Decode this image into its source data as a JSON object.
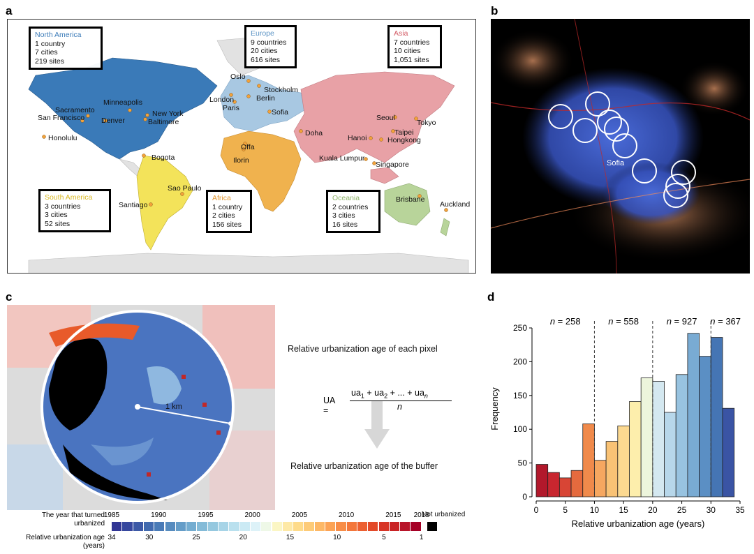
{
  "panels": {
    "a": "a",
    "b": "b",
    "c": "c",
    "d": "d"
  },
  "map": {
    "regions": [
      {
        "name": "North America",
        "countries": "1 country",
        "cities": "7 cities",
        "sites": "219 sites",
        "color": "#3a7ab8"
      },
      {
        "name": "Europe",
        "countries": "9 countries",
        "cities": "20 cities",
        "sites": "616 sites",
        "color": "#a8c8e2"
      },
      {
        "name": "Asia",
        "countries": "7 countries",
        "cities": "10 cities",
        "sites": "1,051 sites",
        "color": "#e8a1a6"
      },
      {
        "name": "South America",
        "countries": "3 countries",
        "cities": "3 cities",
        "sites": "52 sites",
        "color": "#f3e35a"
      },
      {
        "name": "Africa",
        "countries": "1 country",
        "cities": "2 cities",
        "sites": "156 sites",
        "color": "#f0b24e"
      },
      {
        "name": "Oceania",
        "countries": "2 countries",
        "cities": "3 cities",
        "sites": "16 sites",
        "color": "#b8d49a"
      }
    ],
    "cities": [
      "Sacramento",
      "San Francisco",
      "Minneapolis",
      "Denver",
      "New York",
      "Baltimore",
      "Honolulu",
      "Bogota",
      "Sao Paulo",
      "Santiago",
      "Oslo",
      "Stockholm",
      "London",
      "Berlin",
      "Paris",
      "Sofia",
      "Offa",
      "Ilorin",
      "Doha",
      "Seoul",
      "Tokyo",
      "Taipei",
      "Hanoi",
      "Hongkong",
      "Kuala Lumpur",
      "Singapore",
      "Brisbane",
      "Auckland"
    ]
  },
  "satellite": {
    "label": "Sofia"
  },
  "panel_c": {
    "scale_label": "1 km",
    "pixel_text": "Relative urbanization age of each pixel",
    "buffer_text": "Relative urbanization age of the buffer",
    "formula_lhs": "UA =",
    "formula_num": "ua",
    "formula_mid": " + ua",
    "formula_dots": " + ... + ua",
    "sub1": "1",
    "sub2": "2",
    "subn": "n",
    "formula_den": "n",
    "legend": {
      "year_label": "The year that turned urbanized",
      "age_label": "Relative urbanization age (years)",
      "years": [
        "1985",
        "1990",
        "1995",
        "2000",
        "2005",
        "2010",
        "2015",
        "2018"
      ],
      "ages": [
        "34",
        "30",
        "25",
        "20",
        "15",
        "10",
        "5",
        "1"
      ],
      "not_urbanized": "Not urbanized"
    }
  },
  "chart_data": {
    "type": "bar",
    "xlabel": "Relative urbanization age (years)",
    "ylabel": "Frequency",
    "xlim": [
      0,
      35
    ],
    "ylim": [
      0,
      250
    ],
    "xticks": [
      0,
      5,
      10,
      15,
      20,
      25,
      30,
      35
    ],
    "yticks": [
      0,
      50,
      100,
      150,
      200,
      250
    ],
    "bin_width": 2,
    "bins": [
      {
        "x": 0,
        "value": 48,
        "color": "#b2182b"
      },
      {
        "x": 2,
        "value": 36,
        "color": "#c8262f"
      },
      {
        "x": 4,
        "value": 28,
        "color": "#d84535"
      },
      {
        "x": 6,
        "value": 39,
        "color": "#e56a3e"
      },
      {
        "x": 8,
        "value": 108,
        "color": "#f08a4b"
      },
      {
        "x": 10,
        "value": 54,
        "color": "#f6a760"
      },
      {
        "x": 12,
        "value": 82,
        "color": "#f9c275"
      },
      {
        "x": 14,
        "value": 105,
        "color": "#fcd990"
      },
      {
        "x": 16,
        "value": 141,
        "color": "#fdeeac"
      },
      {
        "x": 18,
        "value": 176,
        "color": "#edf5dc"
      },
      {
        "x": 20,
        "value": 171,
        "color": "#d4e8f0"
      },
      {
        "x": 22,
        "value": 125,
        "color": "#b7d7ea"
      },
      {
        "x": 24,
        "value": 181,
        "color": "#98c3e0"
      },
      {
        "x": 26,
        "value": 242,
        "color": "#79abd3"
      },
      {
        "x": 28,
        "value": 208,
        "color": "#5b8fc4"
      },
      {
        "x": 30,
        "value": 236,
        "color": "#4575b4"
      },
      {
        "x": 32,
        "value": 131,
        "color": "#3a54a4"
      }
    ],
    "dividers": [
      10,
      20,
      30
    ],
    "group_counts": [
      "258",
      "558",
      "927",
      "367"
    ],
    "n_prefix": "n"
  }
}
